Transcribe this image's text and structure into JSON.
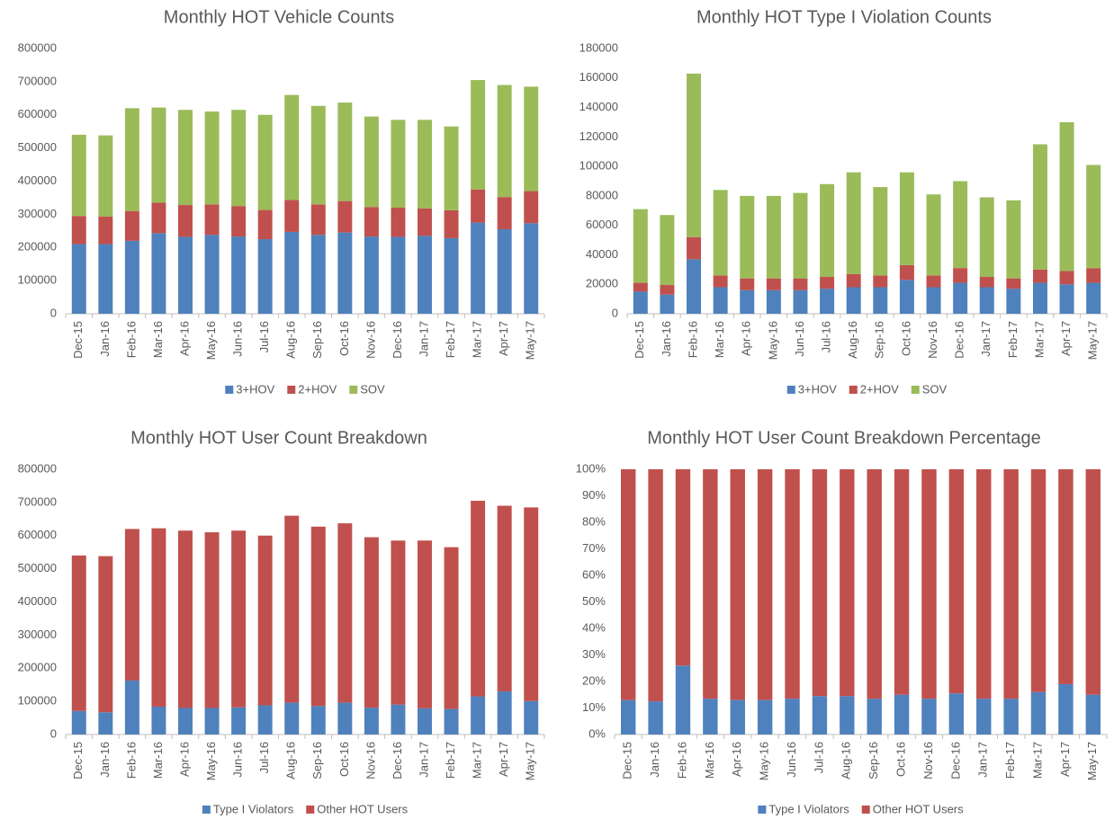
{
  "chart_data": [
    {
      "type": "bar",
      "stacked": true,
      "title": "Monthly HOT Vehicle Counts",
      "categories": [
        "Dec-15",
        "Jan-16",
        "Feb-16",
        "Mar-16",
        "Apr-16",
        "May-16",
        "Jun-16",
        "Jul-16",
        "Aug-16",
        "Sep-16",
        "Oct-16",
        "Nov-16",
        "Dec-16",
        "Jan-17",
        "Feb-17",
        "Mar-17",
        "Apr-17",
        "May-17"
      ],
      "series": [
        {
          "name": "3+HOV",
          "color": "#4f81bd",
          "values": [
            210000,
            210000,
            220000,
            243000,
            232000,
            238000,
            233000,
            225000,
            247000,
            238000,
            245000,
            233000,
            232000,
            235000,
            228000,
            275000,
            255000,
            273000
          ]
        },
        {
          "name": "2+HOV",
          "color": "#c0504d",
          "values": [
            85000,
            83000,
            90000,
            92000,
            96000,
            92000,
            92000,
            88000,
            96000,
            92000,
            95000,
            89000,
            88000,
            83000,
            84000,
            100000,
            97000,
            97000
          ]
        },
        {
          "name": "SOV",
          "color": "#9bbb59",
          "values": [
            245000,
            245000,
            310000,
            287000,
            287000,
            280000,
            290000,
            287000,
            317000,
            297000,
            297000,
            273000,
            265000,
            267000,
            253000,
            330000,
            338000,
            315000
          ]
        }
      ],
      "ylim": [
        0,
        800000
      ],
      "yticks": [
        0,
        100000,
        200000,
        300000,
        400000,
        500000,
        600000,
        700000,
        800000
      ],
      "grid": false,
      "legend": "bottom"
    },
    {
      "type": "bar",
      "stacked": true,
      "title": "Monthly HOT Type I Violation Counts",
      "categories": [
        "Dec-15",
        "Jan-16",
        "Feb-16",
        "Mar-16",
        "Apr-16",
        "May-16",
        "Jun-16",
        "Jul-16",
        "Aug-16",
        "Sep-16",
        "Oct-16",
        "Nov-16",
        "Dec-16",
        "Jan-17",
        "Feb-17",
        "Mar-17",
        "Apr-17",
        "May-17"
      ],
      "series": [
        {
          "name": "3+HOV",
          "color": "#4f81bd",
          "values": [
            15000,
            13000,
            37000,
            18000,
            16000,
            16000,
            16000,
            17000,
            18000,
            18000,
            23000,
            18000,
            21000,
            18000,
            17000,
            21000,
            20000,
            21000
          ]
        },
        {
          "name": "2+HOV",
          "color": "#c0504d",
          "values": [
            6000,
            6500,
            15000,
            8000,
            8000,
            8000,
            8000,
            8000,
            9000,
            8000,
            10000,
            8000,
            10000,
            7000,
            7000,
            9000,
            9000,
            10000
          ]
        },
        {
          "name": "SOV",
          "color": "#9bbb59",
          "values": [
            50000,
            47500,
            111000,
            58000,
            56000,
            56000,
            58000,
            63000,
            69000,
            60000,
            63000,
            55000,
            59000,
            54000,
            53000,
            85000,
            101000,
            70000
          ]
        }
      ],
      "ylim": [
        0,
        180000
      ],
      "yticks": [
        0,
        20000,
        40000,
        60000,
        80000,
        100000,
        120000,
        140000,
        160000,
        180000
      ],
      "grid": false,
      "legend": "bottom"
    },
    {
      "type": "bar",
      "stacked": true,
      "title": "Monthly HOT User Count Breakdown",
      "categories": [
        "Dec-15",
        "Jan-16",
        "Feb-16",
        "Mar-16",
        "Apr-16",
        "May-16",
        "Jun-16",
        "Jul-16",
        "Aug-16",
        "Sep-16",
        "Oct-16",
        "Nov-16",
        "Dec-16",
        "Jan-17",
        "Feb-17",
        "Mar-17",
        "Apr-17",
        "May-17"
      ],
      "series": [
        {
          "name": "Type I Violators",
          "color": "#4f81bd",
          "values": [
            71000,
            67000,
            163000,
            84000,
            80000,
            80000,
            82000,
            88000,
            96000,
            86000,
            96000,
            81000,
            90000,
            79000,
            77000,
            115000,
            130000,
            101000
          ]
        },
        {
          "name": "Other HOT Users",
          "color": "#c0504d",
          "values": [
            469000,
            471000,
            457000,
            538000,
            535000,
            530000,
            533000,
            512000,
            564000,
            541000,
            541000,
            514000,
            495000,
            506000,
            488000,
            590000,
            560000,
            584000
          ]
        }
      ],
      "ylim": [
        0,
        800000
      ],
      "yticks": [
        0,
        100000,
        200000,
        300000,
        400000,
        500000,
        600000,
        700000,
        800000
      ],
      "grid": false,
      "legend": "bottom"
    },
    {
      "type": "bar",
      "stacked": true,
      "title": "Monthly HOT User Count Breakdown Percentage",
      "categories": [
        "Dec-15",
        "Jan-16",
        "Feb-16",
        "Mar-16",
        "Apr-16",
        "May-16",
        "Jun-16",
        "Jul-16",
        "Aug-16",
        "Sep-16",
        "Oct-16",
        "Nov-16",
        "Dec-16",
        "Jan-17",
        "Feb-17",
        "Mar-17",
        "Apr-17",
        "May-17"
      ],
      "series": [
        {
          "name": "Type I Violators",
          "color": "#4f81bd",
          "values": [
            13,
            12.5,
            26,
            13.5,
            13,
            13,
            13.5,
            14.5,
            14.5,
            13.5,
            15,
            13.5,
            15.5,
            13.5,
            13.5,
            16,
            19,
            15
          ]
        },
        {
          "name": "Other HOT Users",
          "color": "#c0504d",
          "values": [
            87,
            87.5,
            74,
            86.5,
            87,
            87,
            86.5,
            85.5,
            85.5,
            86.5,
            85,
            86.5,
            84.5,
            86.5,
            86.5,
            84,
            81,
            85
          ]
        }
      ],
      "ylim": [
        0,
        100
      ],
      "yticks": [
        {
          "value": 0,
          "label": "0%"
        },
        {
          "value": 10,
          "label": "10%"
        },
        {
          "value": 20,
          "label": "20%"
        },
        {
          "value": 30,
          "label": "30%"
        },
        {
          "value": 40,
          "label": "40%"
        },
        {
          "value": 50,
          "label": "50%"
        },
        {
          "value": 60,
          "label": "60%"
        },
        {
          "value": 70,
          "label": "70%"
        },
        {
          "value": 80,
          "label": "80%"
        },
        {
          "value": 90,
          "label": "90%"
        },
        {
          "value": 100,
          "label": "100%"
        }
      ],
      "grid": false,
      "legend": "bottom"
    }
  ]
}
